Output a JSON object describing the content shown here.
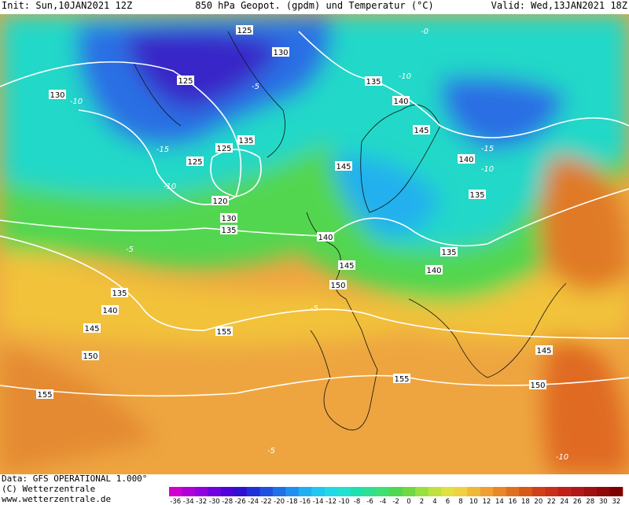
{
  "header": {
    "init": "Init: Sun,10JAN2021 12Z",
    "title": "850 hPa Geopot. (gpdm) und Temperatur (°C)",
    "valid": "Valid: Wed,13JAN2021 18Z"
  },
  "map": {
    "geopotential_labels": [
      "125",
      "130",
      "125",
      "130",
      "135",
      "140",
      "145",
      "135",
      "125",
      "125",
      "145",
      "140",
      "135",
      "120",
      "130",
      "135",
      "140",
      "135",
      "145",
      "140",
      "150",
      "135",
      "140",
      "145",
      "155",
      "150",
      "145",
      "155",
      "150",
      "155"
    ],
    "temperature_labels": [
      "-5",
      "-10",
      "-15",
      "-10",
      "-5",
      "-10",
      "-15",
      "-10",
      "-5",
      "-5",
      "-10",
      "-0"
    ]
  },
  "footer": {
    "data": "Data: GFS OPERATIONAL 1.000°",
    "copyright": "(C) Wetterzentrale",
    "url": "www.wetterzentrale.de"
  },
  "colorbar": {
    "labels": [
      "-36",
      "-34",
      "-32",
      "-30",
      "-28",
      "-26",
      "-24",
      "-22",
      "-20",
      "-18",
      "-16",
      "-14",
      "-12",
      "-10",
      "-8",
      "-6",
      "-4",
      "-2",
      "0",
      "2",
      "4",
      "6",
      "8",
      "10",
      "12",
      "14",
      "16",
      "18",
      "20",
      "22",
      "24",
      "26",
      "28",
      "30",
      "32"
    ],
    "colors": [
      "#d000d0",
      "#b000d8",
      "#9000e0",
      "#7000e0",
      "#5000d8",
      "#3010d0",
      "#2030d8",
      "#2050e0",
      "#2070e8",
      "#2090f0",
      "#20b0f0",
      "#20c8f0",
      "#20d8e8",
      "#20e0d0",
      "#20e0b0",
      "#30e090",
      "#40e070",
      "#50d850",
      "#70d840",
      "#98e040",
      "#c0e040",
      "#e0e040",
      "#f0d040",
      "#f0b838",
      "#f0a030",
      "#e88828",
      "#e07020",
      "#d85818",
      "#d04018",
      "#c83018",
      "#c02018",
      "#b01818",
      "#a01010",
      "#900808",
      "#800000"
    ]
  }
}
